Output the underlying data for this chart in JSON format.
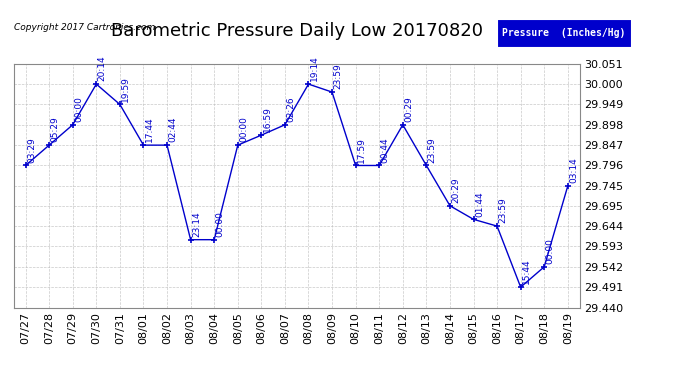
{
  "title": "Barometric Pressure Daily Low 20170820",
  "copyright": "Copyright 2017 Cartronics.com",
  "legend_label": "Pressure  (Inches/Hg)",
  "ylim": [
    29.44,
    30.051
  ],
  "yticks": [
    29.44,
    29.491,
    29.542,
    29.593,
    29.644,
    29.695,
    29.745,
    29.796,
    29.847,
    29.898,
    29.949,
    30.0,
    30.051
  ],
  "line_color": "#0000CC",
  "bg_color": "#ffffff",
  "grid_color": "#bbbbbb",
  "dates": [
    "07/27",
    "07/28",
    "07/29",
    "07/30",
    "07/31",
    "08/01",
    "08/02",
    "08/03",
    "08/04",
    "08/05",
    "08/06",
    "08/07",
    "08/08",
    "08/09",
    "08/10",
    "08/11",
    "08/12",
    "08/13",
    "08/14",
    "08/15",
    "08/16",
    "08/17",
    "08/18",
    "08/19"
  ],
  "values": [
    29.796,
    29.847,
    29.898,
    30.0,
    29.949,
    29.847,
    29.847,
    29.61,
    29.61,
    29.847,
    29.872,
    29.898,
    30.0,
    29.98,
    29.796,
    29.796,
    29.898,
    29.796,
    29.695,
    29.661,
    29.644,
    29.491,
    29.542,
    29.745
  ],
  "time_labels": [
    "03:29",
    "05:29",
    "00:00",
    "20:14",
    "19:59",
    "17:44",
    "02:44",
    "23:14",
    "00:00",
    "00:00",
    "16:59",
    "02:26",
    "19:14",
    "23:59",
    "17:59",
    "00:44",
    "00:29",
    "23:59",
    "20:29",
    "01:44",
    "23:59",
    "15:44",
    "00:00",
    "03:14"
  ],
  "title_fontsize": 13,
  "tick_fontsize": 8,
  "annot_fontsize": 6.5
}
